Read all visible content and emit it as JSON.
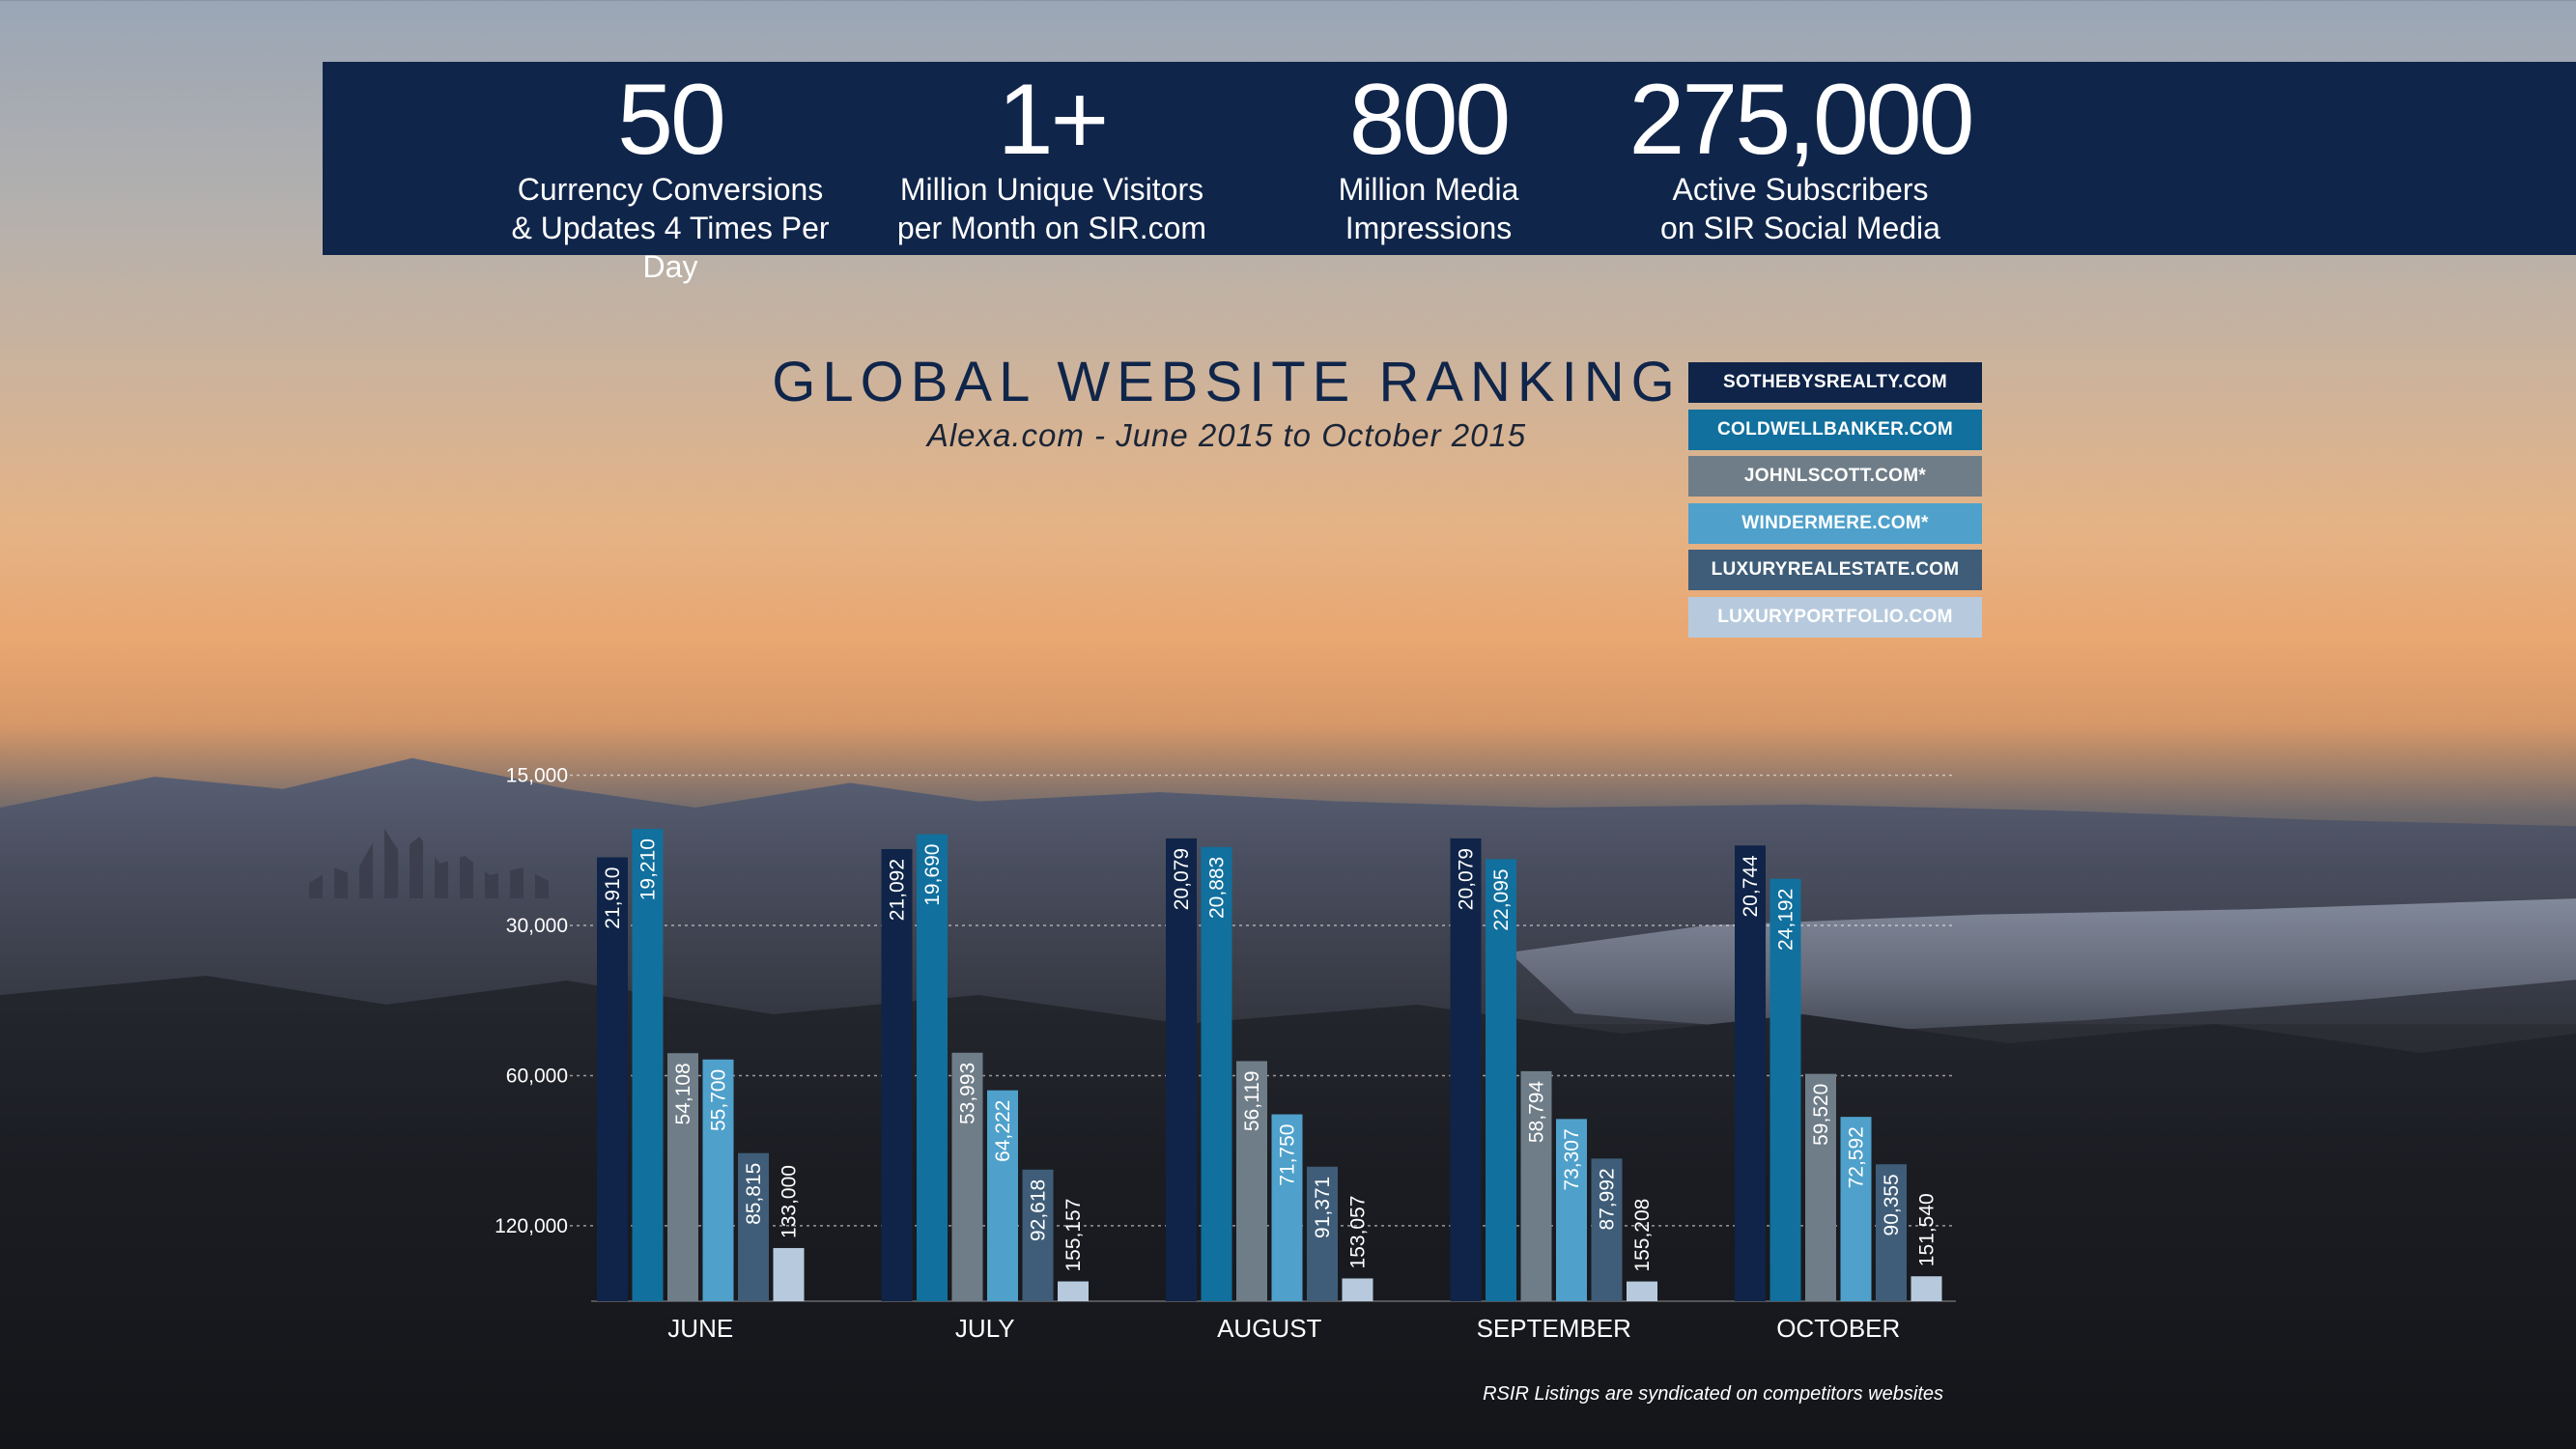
{
  "stats": [
    {
      "value": "50",
      "line1": "Currency Conversions",
      "line2": "& Updates 4 Times Per Day"
    },
    {
      "value": "1+",
      "line1": "Million Unique Visitors",
      "line2": "per Month on SIR.com"
    },
    {
      "value": "800",
      "line1": "Million Media",
      "line2": "Impressions"
    },
    {
      "value": "275,000",
      "line1": "Active Subscribers",
      "line2": "on SIR Social Media"
    }
  ],
  "footnote": "RSIR Listings are syndicated on competitors websites",
  "chart_data": {
    "type": "bar",
    "title": "GLOBAL WEBSITE RANKING",
    "subtitle": "Alexa.com - June 2015 to October 2015",
    "categories": [
      "JUNE",
      "JULY",
      "AUGUST",
      "SEPTEMBER",
      "OCTOBER"
    ],
    "yscale": "log",
    "inverted": true,
    "ylim": [
      9000,
      170000
    ],
    "yticks": [
      15000,
      30000,
      60000,
      120000
    ],
    "ytick_labels": [
      "15,000",
      "30,000",
      "60,000",
      "120,000"
    ],
    "grid": true,
    "legend": "top-right",
    "series": [
      {
        "name": "SOTHEBYSREALTY.COM",
        "color": "#0f2448",
        "values": [
          21910,
          21092,
          20079,
          20079,
          20744
        ],
        "labels": [
          "21,910",
          "21,092",
          "20,079",
          "20,079",
          "20,744"
        ]
      },
      {
        "name": "COLDWELLBANKER.COM",
        "color": "#11709e",
        "values": [
          19210,
          19690,
          20883,
          22095,
          24192
        ],
        "labels": [
          "19,210",
          "19,690",
          "20,883",
          "22,095",
          "24,192"
        ]
      },
      {
        "name": "JOHNLSCOTT.COM*",
        "color": "#6f7d88",
        "values": [
          54108,
          53993,
          56119,
          58794,
          59520
        ],
        "labels": [
          "54,108",
          "53,993",
          "56,119",
          "58,794",
          "59,520"
        ]
      },
      {
        "name": "WINDERMERE.COM*",
        "color": "#4fa1cb",
        "values": [
          55700,
          64222,
          71750,
          73307,
          72592
        ],
        "labels": [
          "55,700",
          "64,222",
          "71,750",
          "73,307",
          "72,592"
        ]
      },
      {
        "name": "LUXURYREALESTATE.COM",
        "color": "#3f5d78",
        "values": [
          85815,
          92618,
          91371,
          87992,
          90355
        ],
        "labels": [
          "85,815",
          "92,618",
          "91,371",
          "87,992",
          "90,355"
        ]
      },
      {
        "name": "LUXURYPORTFOLIO.COM",
        "color": "#b7cadd",
        "values": [
          133000,
          155157,
          153057,
          155208,
          151540
        ],
        "labels": [
          "133,000",
          "155,157",
          "153,057",
          "155,208",
          "151,540"
        ]
      }
    ]
  }
}
